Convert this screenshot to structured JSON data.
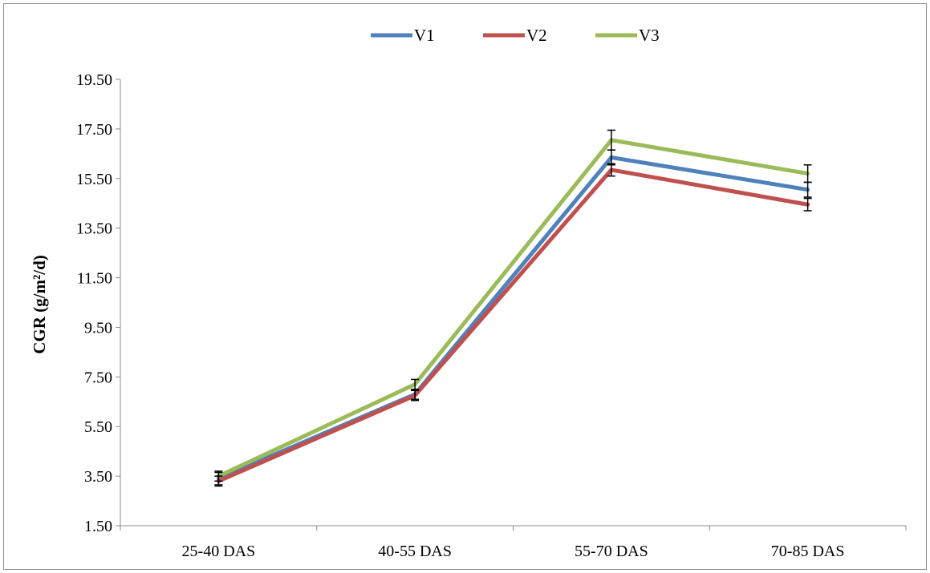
{
  "chart_data": {
    "type": "line",
    "title": "",
    "xlabel": "",
    "ylabel": "CGR (g/m²/d)",
    "categories": [
      "25-40 DAS",
      "40-55 DAS",
      "55-70 DAS",
      "70-85 DAS"
    ],
    "ylim": [
      1.5,
      19.5
    ],
    "yticks": [
      "1.50",
      "3.50",
      "5.50",
      "7.50",
      "9.50",
      "11.50",
      "13.50",
      "15.50",
      "17.50",
      "19.50"
    ],
    "grid": false,
    "legend_position": "top",
    "series": [
      {
        "name": "V1",
        "color": "#4f81bd",
        "values": [
          3.4,
          6.8,
          16.35,
          15.05
        ],
        "errors": [
          0.25,
          0.2,
          0.3,
          0.3
        ]
      },
      {
        "name": "V2",
        "color": "#c0504d",
        "values": [
          3.3,
          6.75,
          15.85,
          14.45
        ],
        "errors": [
          0.2,
          0.2,
          0.25,
          0.25
        ]
      },
      {
        "name": "V3",
        "color": "#9bbb59",
        "values": [
          3.5,
          7.2,
          17.05,
          15.7
        ],
        "errors": [
          0.2,
          0.2,
          0.4,
          0.35
        ]
      }
    ]
  }
}
